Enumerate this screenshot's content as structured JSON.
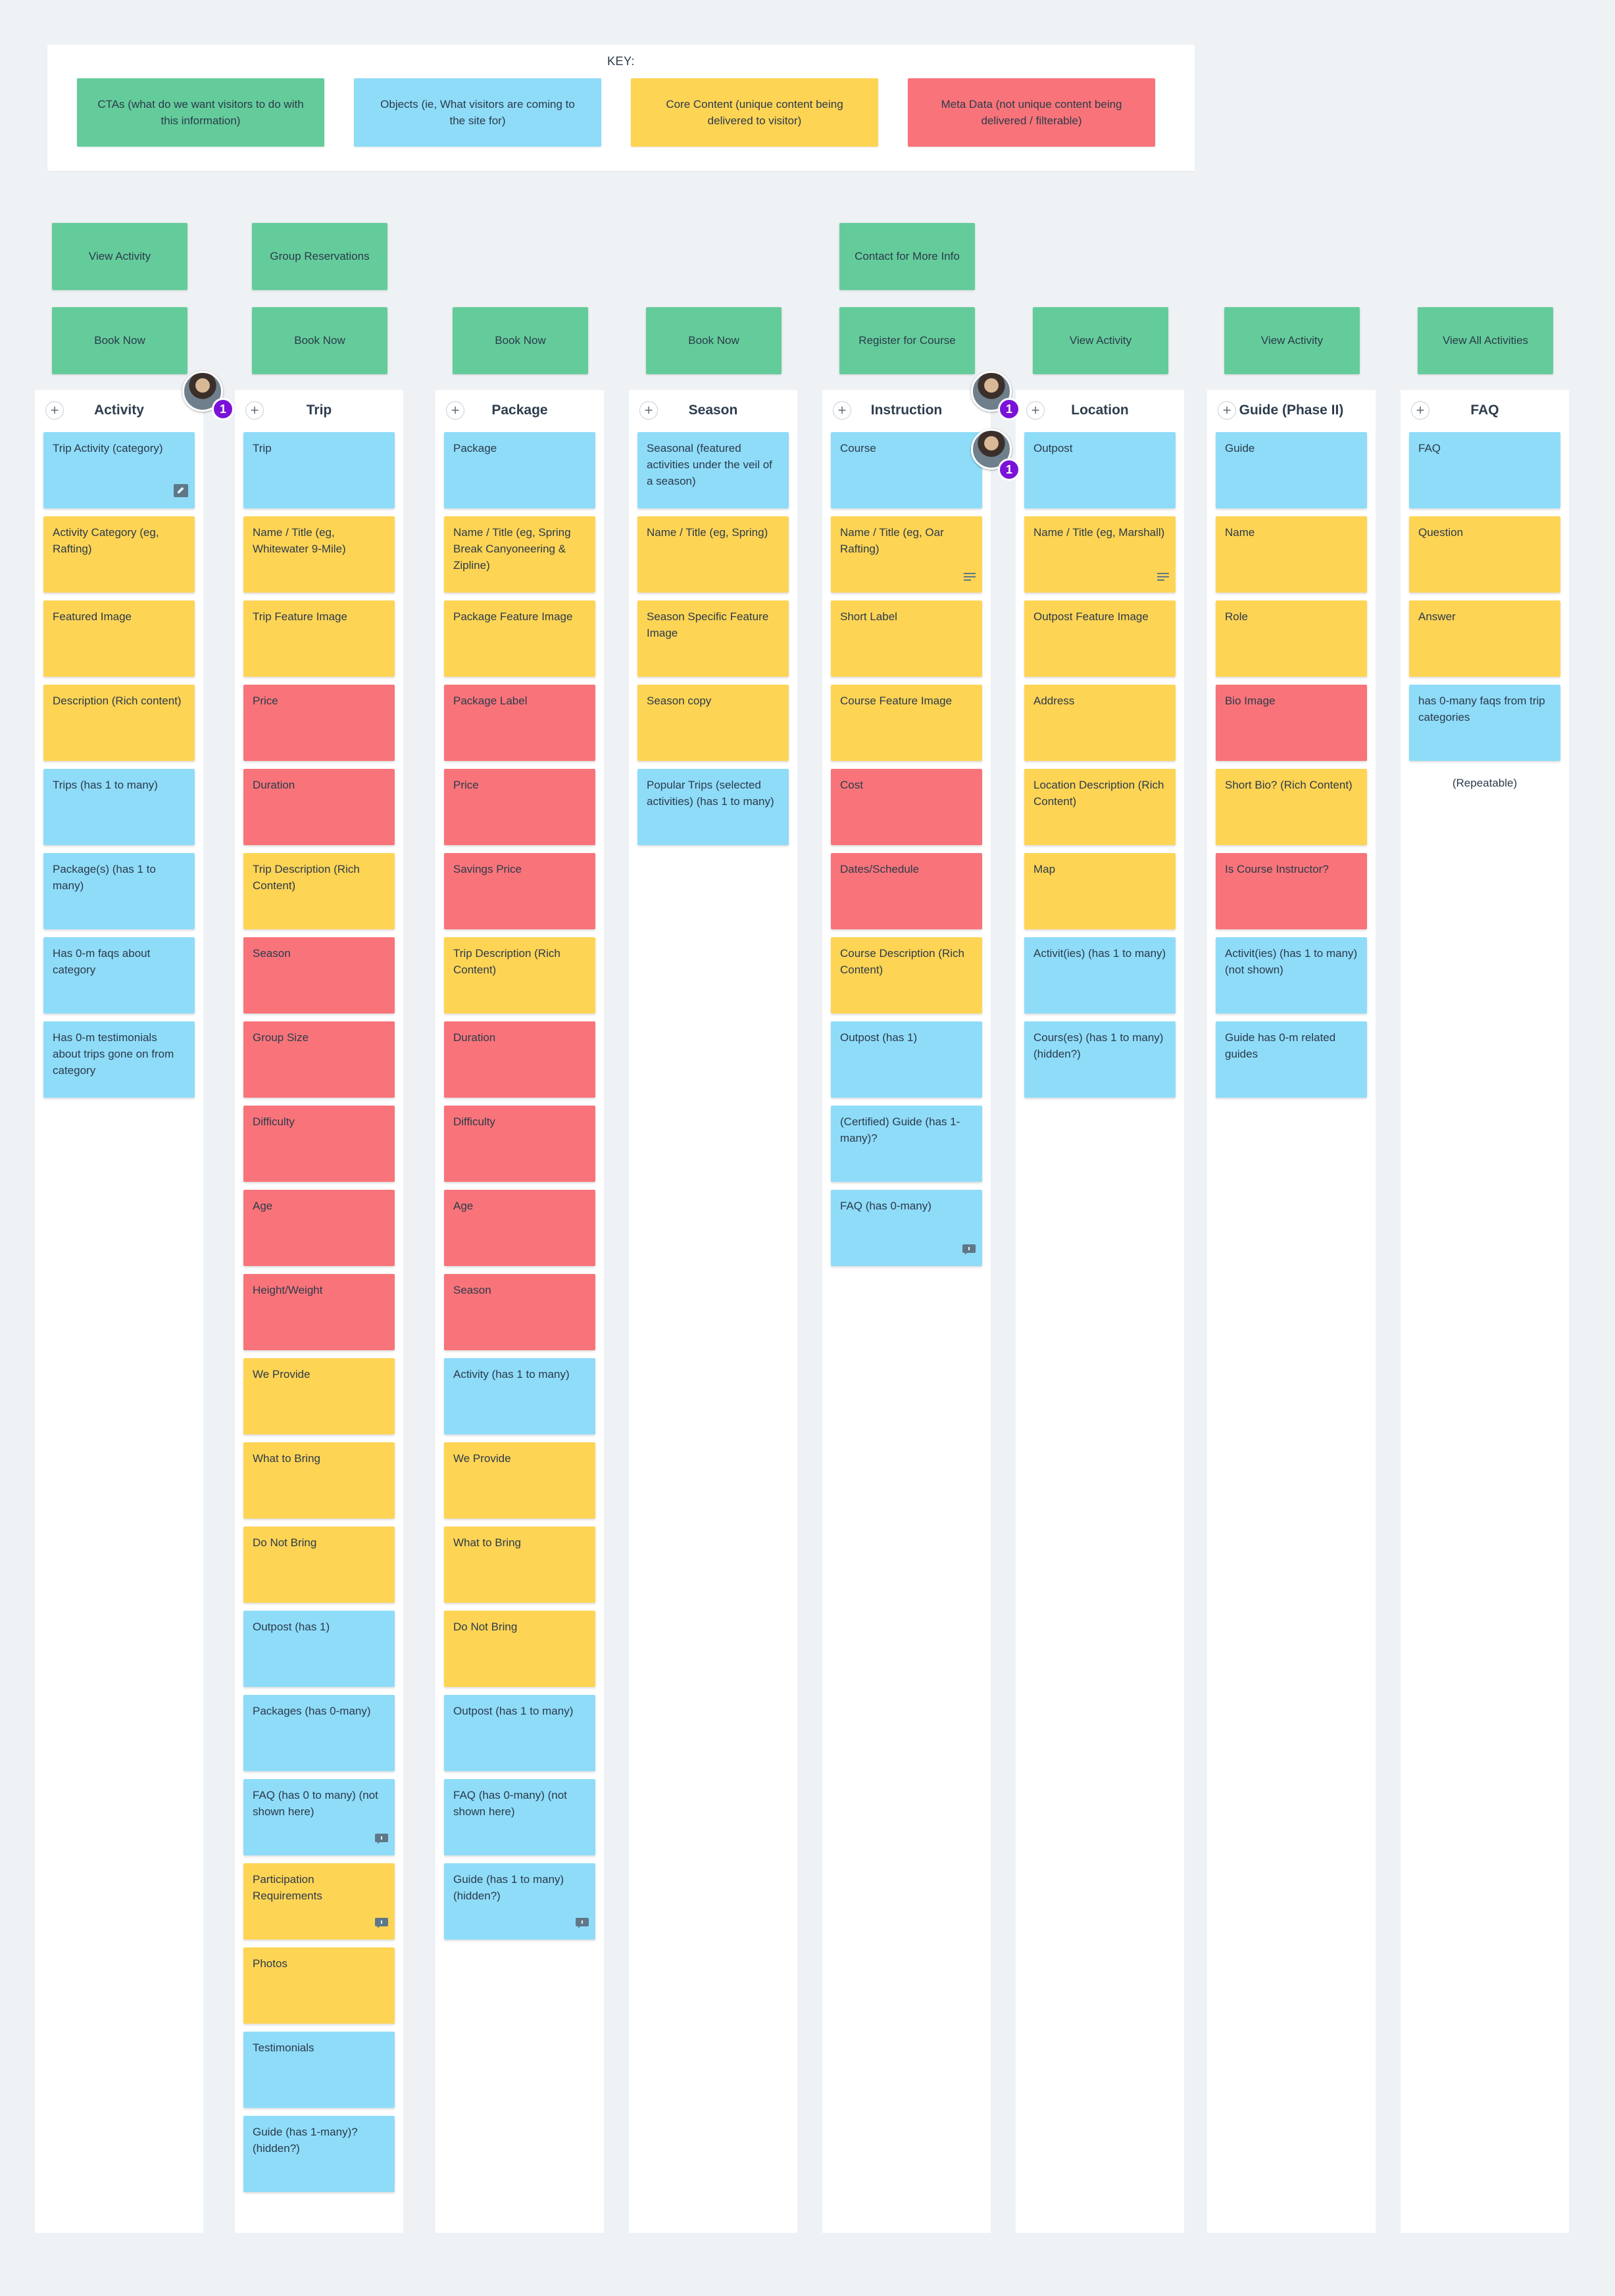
{
  "key": {
    "title": "KEY:",
    "items": [
      {
        "label": "CTAs (what do we want visitors to do with this information)",
        "color": "#64cc9b"
      },
      {
        "label": "Objects (ie, What visitors are coming to the site for)",
        "color": "#8fdcf9"
      },
      {
        "label": "Core Content (unique content being delivered to visitor)",
        "color": "#fed455"
      },
      {
        "label": "Meta Data (not unique content being delivered / filterable)",
        "color": "#f8747a"
      }
    ]
  },
  "ctas": {
    "row1": [
      "View Activity",
      "Group Reservations",
      "Contact for More Info"
    ],
    "row2": [
      "Book Now",
      "Book Now",
      "Book Now",
      "Book Now",
      "Register for Course",
      "View Activity",
      "View Activity",
      "View All Activities"
    ]
  },
  "columns": [
    {
      "title": "Activity",
      "cards": [
        {
          "text": "Trip Activity (category)",
          "color": "blue",
          "icon": "edit-icon"
        },
        {
          "text": "Activity Category (eg, Rafting)",
          "color": "yellow"
        },
        {
          "text": "Featured Image",
          "color": "yellow"
        },
        {
          "text": "Description (Rich content)",
          "color": "yellow"
        },
        {
          "text": "Trips (has 1 to many)",
          "color": "blue"
        },
        {
          "text": "Package(s) (has 1 to many)",
          "color": "blue"
        },
        {
          "text": "Has 0-m faqs about category",
          "color": "blue"
        },
        {
          "text": "Has 0-m testimonials about trips gone on from category",
          "color": "blue"
        }
      ]
    },
    {
      "title": "Trip",
      "cards": [
        {
          "text": "Trip",
          "color": "blue"
        },
        {
          "text": "Name / Title (eg, Whitewater 9-Mile)",
          "color": "yellow"
        },
        {
          "text": "Trip Feature Image",
          "color": "yellow"
        },
        {
          "text": "Price",
          "color": "red"
        },
        {
          "text": "Duration",
          "color": "red"
        },
        {
          "text": "Trip Description (Rich Content)",
          "color": "yellow"
        },
        {
          "text": "Season",
          "color": "red"
        },
        {
          "text": "Group Size",
          "color": "red"
        },
        {
          "text": "Difficulty",
          "color": "red"
        },
        {
          "text": "Age",
          "color": "red"
        },
        {
          "text": "Height/Weight",
          "color": "red"
        },
        {
          "text": "We Provide",
          "color": "yellow"
        },
        {
          "text": "What to Bring",
          "color": "yellow"
        },
        {
          "text": "Do Not Bring",
          "color": "yellow"
        },
        {
          "text": "Outpost (has 1)",
          "color": "blue"
        },
        {
          "text": "Packages (has 0-many)",
          "color": "blue"
        },
        {
          "text": "FAQ (has 0 to many) (not shown here)",
          "color": "blue",
          "icon": "comment-icon"
        },
        {
          "text": "Participation Requirements",
          "color": "yellow",
          "icon": "comment-icon"
        },
        {
          "text": "Photos",
          "color": "yellow"
        },
        {
          "text": "Testimonials",
          "color": "blue"
        },
        {
          "text": "Guide (has 1-many)? (hidden?)",
          "color": "blue"
        }
      ]
    },
    {
      "title": "Package",
      "cards": [
        {
          "text": "Package",
          "color": "blue"
        },
        {
          "text": "Name / Title (eg, Spring Break Canyoneering & Zipline)",
          "color": "yellow"
        },
        {
          "text": "Package Feature Image",
          "color": "yellow"
        },
        {
          "text": "Package Label",
          "color": "red"
        },
        {
          "text": "Price",
          "color": "red"
        },
        {
          "text": "Savings Price",
          "color": "red"
        },
        {
          "text": "Trip Description  (Rich Content)",
          "color": "yellow"
        },
        {
          "text": "Duration",
          "color": "red"
        },
        {
          "text": "Difficulty",
          "color": "red"
        },
        {
          "text": "Age",
          "color": "red"
        },
        {
          "text": "Season",
          "color": "red"
        },
        {
          "text": "Activity (has 1 to many)",
          "color": "blue"
        },
        {
          "text": "We Provide",
          "color": "yellow"
        },
        {
          "text": "What to Bring",
          "color": "yellow"
        },
        {
          "text": "Do Not Bring",
          "color": "yellow"
        },
        {
          "text": "Outpost (has 1 to many)",
          "color": "blue"
        },
        {
          "text": "FAQ (has 0-many) (not shown here)",
          "color": "blue"
        },
        {
          "text": "Guide (has 1 to many) (hidden?)",
          "color": "blue",
          "icon": "comment-icon"
        }
      ]
    },
    {
      "title": "Season",
      "cards": [
        {
          "text": "Seasonal (featured activities under the veil of a season)",
          "color": "blue"
        },
        {
          "text": "Name / Title (eg, Spring)",
          "color": "yellow"
        },
        {
          "text": "Season Specific Feature Image",
          "color": "yellow"
        },
        {
          "text": "Season copy",
          "color": "yellow"
        },
        {
          "text": "Popular Trips (selected activities) (has 1 to many)",
          "color": "blue"
        }
      ]
    },
    {
      "title": "Instruction",
      "cards": [
        {
          "text": "Course",
          "color": "blue"
        },
        {
          "text": "Name / Title (eg, Oar Rafting)",
          "color": "yellow",
          "icon": "notes-icon"
        },
        {
          "text": "Short Label",
          "color": "yellow"
        },
        {
          "text": "Course Feature Image",
          "color": "yellow"
        },
        {
          "text": "Cost",
          "color": "red"
        },
        {
          "text": "Dates/Schedule",
          "color": "red"
        },
        {
          "text": "Course Description (Rich Content)",
          "color": "yellow"
        },
        {
          "text": "Outpost (has 1)",
          "color": "blue"
        },
        {
          "text": "(Certified) Guide (has 1-many)?",
          "color": "blue"
        },
        {
          "text": "FAQ (has 0-many)",
          "color": "blue",
          "icon": "comment-icon"
        }
      ]
    },
    {
      "title": "Location",
      "cards": [
        {
          "text": "Outpost",
          "color": "blue"
        },
        {
          "text": "Name / Title (eg, Marshall)",
          "color": "yellow",
          "icon": "notes-icon"
        },
        {
          "text": "Outpost Feature Image",
          "color": "yellow"
        },
        {
          "text": "Address",
          "color": "yellow"
        },
        {
          "text": "Location Description (Rich Content)",
          "color": "yellow"
        },
        {
          "text": "Map",
          "color": "yellow"
        },
        {
          "text": "Activit(ies) (has 1 to many)",
          "color": "blue"
        },
        {
          "text": "Cours(es) (has 1 to many) (hidden?)",
          "color": "blue"
        }
      ]
    },
    {
      "title": "Guide (Phase II)",
      "cards": [
        {
          "text": "Guide",
          "color": "blue"
        },
        {
          "text": "Name",
          "color": "yellow"
        },
        {
          "text": "Role",
          "color": "yellow"
        },
        {
          "text": "Bio Image",
          "color": "red"
        },
        {
          "text": "Short Bio? (Rich Content)",
          "color": "yellow"
        },
        {
          "text": "Is Course Instructor?",
          "color": "red"
        },
        {
          "text": "Activit(ies) (has 1 to many) (not shown)",
          "color": "blue"
        },
        {
          "text": "Guide has 0-m related guides",
          "color": "blue"
        }
      ]
    },
    {
      "title": "FAQ",
      "cards": [
        {
          "text": "FAQ",
          "color": "blue"
        },
        {
          "text": "Question",
          "color": "yellow"
        },
        {
          "text": "Answer",
          "color": "yellow"
        },
        {
          "text": "has 0-many faqs from trip categories",
          "color": "blue"
        }
      ],
      "note": "(Repeatable)"
    }
  ],
  "comment_counts": [
    "1",
    "1",
    "1"
  ]
}
